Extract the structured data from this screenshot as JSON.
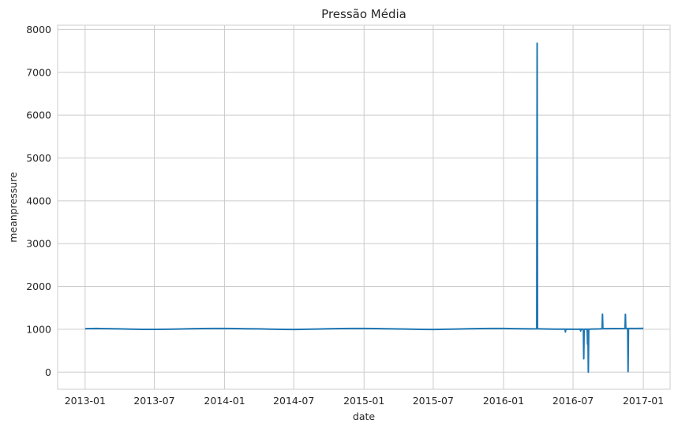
{
  "chart_data": {
    "type": "line",
    "title": "Pressão Média",
    "xlabel": "date",
    "ylabel": "meanpressure",
    "grid": true,
    "xlim": [
      "2012-10-21",
      "2017-03-12"
    ],
    "ylim": [
      -400,
      8100
    ],
    "x_ticks": [
      "2013-01",
      "2013-07",
      "2014-01",
      "2014-07",
      "2015-01",
      "2015-07",
      "2016-01",
      "2016-07",
      "2017-01"
    ],
    "y_ticks": [
      0,
      1000,
      2000,
      3000,
      4000,
      5000,
      6000,
      7000,
      8000
    ],
    "series": [
      {
        "color": "#1f77b4",
        "points": [
          [
            "2013-01-01",
            1015
          ],
          [
            "2013-02-01",
            1018
          ],
          [
            "2013-03-01",
            1014
          ],
          [
            "2013-04-01",
            1009
          ],
          [
            "2013-05-01",
            1004
          ],
          [
            "2013-06-01",
            999
          ],
          [
            "2013-07-01",
            998
          ],
          [
            "2013-08-01",
            1000
          ],
          [
            "2013-09-01",
            1006
          ],
          [
            "2013-10-01",
            1012
          ],
          [
            "2013-11-01",
            1016
          ],
          [
            "2013-12-01",
            1019
          ],
          [
            "2014-01-01",
            1018
          ],
          [
            "2014-02-01",
            1016
          ],
          [
            "2014-03-01",
            1013
          ],
          [
            "2014-04-01",
            1009
          ],
          [
            "2014-05-01",
            1003
          ],
          [
            "2014-06-01",
            998
          ],
          [
            "2014-07-01",
            997
          ],
          [
            "2014-08-01",
            1000
          ],
          [
            "2014-09-01",
            1006
          ],
          [
            "2014-10-01",
            1012
          ],
          [
            "2014-11-01",
            1016
          ],
          [
            "2014-12-01",
            1019
          ],
          [
            "2015-01-01",
            1018
          ],
          [
            "2015-02-01",
            1016
          ],
          [
            "2015-03-01",
            1012
          ],
          [
            "2015-04-01",
            1008
          ],
          [
            "2015-05-01",
            1002
          ],
          [
            "2015-06-01",
            998
          ],
          [
            "2015-07-01",
            997
          ],
          [
            "2015-08-01",
            1000
          ],
          [
            "2015-09-01",
            1006
          ],
          [
            "2015-10-01",
            1012
          ],
          [
            "2015-11-01",
            1017
          ],
          [
            "2015-12-01",
            1019
          ],
          [
            "2016-01-01",
            1018
          ],
          [
            "2016-02-01",
            1015
          ],
          [
            "2016-03-15",
            1010
          ],
          [
            "2016-03-28",
            1012
          ],
          [
            "2016-03-29",
            7679
          ],
          [
            "2016-03-30",
            1012
          ],
          [
            "2016-04-15",
            1008
          ],
          [
            "2016-05-15",
            1004
          ],
          [
            "2016-06-10",
            1003
          ],
          [
            "2016-06-11",
            938
          ],
          [
            "2016-06-12",
            1003
          ],
          [
            "2016-07-10",
            1001
          ],
          [
            "2016-07-20",
            1002
          ],
          [
            "2016-07-21",
            960
          ],
          [
            "2016-07-22",
            1002
          ],
          [
            "2016-07-28",
            1001
          ],
          [
            "2016-07-29",
            310
          ],
          [
            "2016-07-30",
            1001
          ],
          [
            "2016-08-07",
            1002
          ],
          [
            "2016-08-08",
            650
          ],
          [
            "2016-08-09",
            1000
          ],
          [
            "2016-08-10",
            0
          ],
          [
            "2016-08-11",
            1002
          ],
          [
            "2016-09-10",
            1010
          ],
          [
            "2016-09-15",
            1014
          ],
          [
            "2016-09-16",
            1352
          ],
          [
            "2016-09-17",
            1014
          ],
          [
            "2016-10-15",
            1016
          ],
          [
            "2016-11-14",
            1018
          ],
          [
            "2016-11-15",
            1350
          ],
          [
            "2016-11-16",
            1018
          ],
          [
            "2016-11-21",
            1018
          ],
          [
            "2016-11-22",
            12
          ],
          [
            "2016-11-23",
            1020
          ],
          [
            "2016-12-15",
            1020
          ],
          [
            "2017-01-01",
            1021
          ]
        ]
      }
    ]
  }
}
